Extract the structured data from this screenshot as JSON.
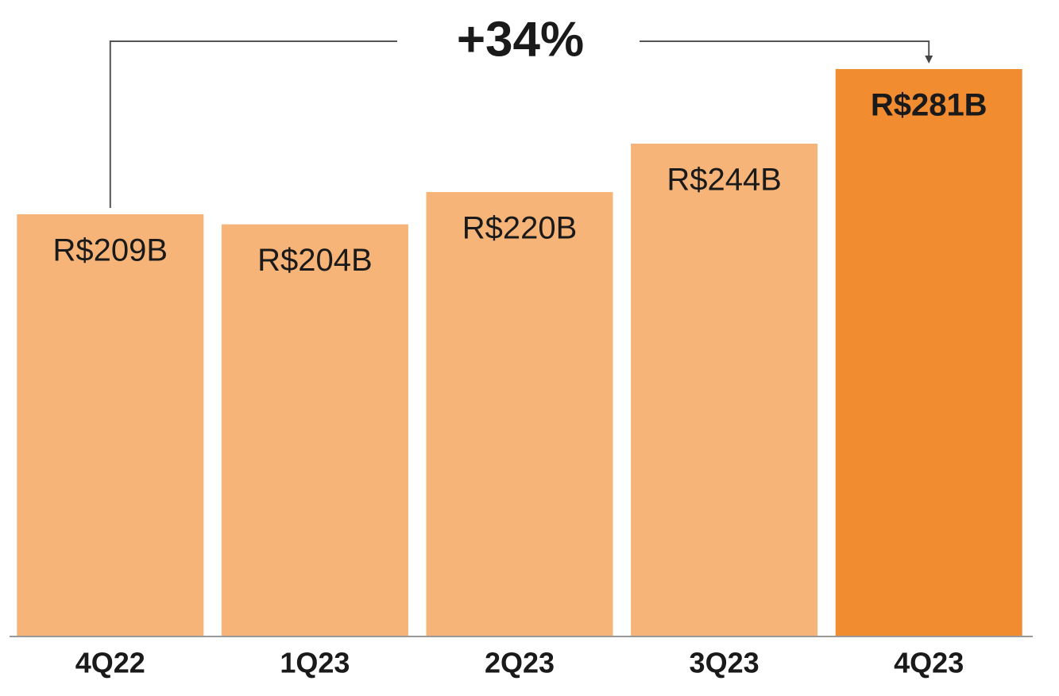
{
  "chart_data": {
    "type": "bar",
    "annotation": "+34%",
    "categories": [
      "4Q22",
      "1Q23",
      "2Q23",
      "3Q23",
      "4Q23"
    ],
    "values": [
      209,
      204,
      220,
      244,
      281
    ],
    "value_labels": [
      "R$209B",
      "R$204B",
      "R$220B",
      "R$244B",
      "R$281B"
    ],
    "colors": [
      "#f6b478",
      "#f6b478",
      "#f6b478",
      "#f6b478",
      "#f28c30"
    ]
  }
}
